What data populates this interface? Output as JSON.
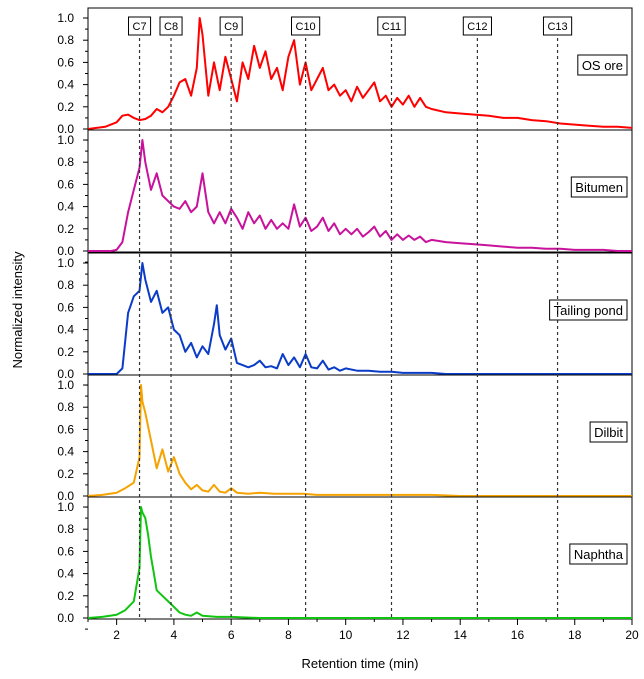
{
  "chart_data": {
    "type": "line",
    "xlabel": "Retention time (min)",
    "ylabel": "Normalized intensity",
    "xlim": [
      1,
      20
    ],
    "ylim": [
      0,
      1.0
    ],
    "x_ticks": [
      2,
      4,
      6,
      8,
      10,
      12,
      14,
      16,
      18,
      20
    ],
    "y_ticks": [
      "0.0",
      "0.2",
      "0.4",
      "0.6",
      "0.8",
      "1.0"
    ],
    "markers": [
      {
        "label": "C7",
        "x": 2.8
      },
      {
        "label": "C8",
        "x": 3.9
      },
      {
        "label": "C9",
        "x": 6.0
      },
      {
        "label": "C10",
        "x": 8.6
      },
      {
        "label": "C11",
        "x": 11.6
      },
      {
        "label": "C12",
        "x": 14.6
      },
      {
        "label": "C13",
        "x": 17.4
      }
    ],
    "series": [
      {
        "name": "OS ore",
        "color": "#ff0000",
        "x": [
          1,
          1.6,
          2.0,
          2.2,
          2.4,
          2.6,
          2.8,
          3.0,
          3.2,
          3.4,
          3.6,
          3.8,
          4.0,
          4.2,
          4.4,
          4.6,
          4.8,
          4.9,
          5.0,
          5.2,
          5.4,
          5.6,
          5.8,
          6.0,
          6.2,
          6.4,
          6.6,
          6.8,
          7.0,
          7.2,
          7.4,
          7.6,
          7.8,
          8.0,
          8.2,
          8.4,
          8.6,
          8.8,
          9.0,
          9.2,
          9.4,
          9.6,
          9.8,
          10.0,
          10.2,
          10.4,
          10.6,
          10.8,
          11.0,
          11.2,
          11.4,
          11.6,
          11.8,
          12.0,
          12.2,
          12.4,
          12.6,
          12.8,
          13.0,
          13.5,
          14.0,
          14.5,
          15.0,
          15.5,
          16.0,
          16.5,
          17.0,
          17.5,
          18.0,
          18.5,
          19.0,
          19.5,
          20.0
        ],
        "y": [
          0.0,
          0.02,
          0.06,
          0.12,
          0.13,
          0.1,
          0.08,
          0.09,
          0.12,
          0.18,
          0.15,
          0.2,
          0.3,
          0.42,
          0.45,
          0.3,
          0.55,
          1.0,
          0.85,
          0.3,
          0.6,
          0.35,
          0.65,
          0.45,
          0.25,
          0.6,
          0.45,
          0.75,
          0.55,
          0.7,
          0.45,
          0.55,
          0.35,
          0.65,
          0.8,
          0.4,
          0.6,
          0.35,
          0.45,
          0.55,
          0.35,
          0.4,
          0.3,
          0.35,
          0.25,
          0.38,
          0.28,
          0.35,
          0.42,
          0.25,
          0.3,
          0.2,
          0.28,
          0.22,
          0.3,
          0.2,
          0.28,
          0.2,
          0.18,
          0.15,
          0.14,
          0.13,
          0.12,
          0.1,
          0.1,
          0.08,
          0.07,
          0.05,
          0.04,
          0.03,
          0.02,
          0.02,
          0.01
        ]
      },
      {
        "name": "Bitumen",
        "color": "#c8129c",
        "x": [
          1,
          1.8,
          2.0,
          2.2,
          2.4,
          2.6,
          2.8,
          2.9,
          3.0,
          3.2,
          3.4,
          3.6,
          3.8,
          4.0,
          4.2,
          4.4,
          4.6,
          4.8,
          5.0,
          5.2,
          5.4,
          5.6,
          5.8,
          6.0,
          6.2,
          6.4,
          6.6,
          6.8,
          7.0,
          7.2,
          7.4,
          7.6,
          7.8,
          8.0,
          8.2,
          8.4,
          8.6,
          8.8,
          9.0,
          9.2,
          9.4,
          9.6,
          9.8,
          10.0,
          10.2,
          10.4,
          10.6,
          10.8,
          11.0,
          11.2,
          11.4,
          11.6,
          11.8,
          12.0,
          12.2,
          12.4,
          12.6,
          12.8,
          13.0,
          13.5,
          14.0,
          14.5,
          15.0,
          15.5,
          16.0,
          16.5,
          17.0,
          17.5,
          18.0,
          18.5,
          19.0,
          19.5,
          20.0
        ],
        "y": [
          0.0,
          0.0,
          0.01,
          0.08,
          0.35,
          0.55,
          0.75,
          1.0,
          0.8,
          0.55,
          0.7,
          0.5,
          0.45,
          0.4,
          0.38,
          0.45,
          0.35,
          0.4,
          0.7,
          0.35,
          0.25,
          0.35,
          0.25,
          0.38,
          0.3,
          0.2,
          0.35,
          0.25,
          0.32,
          0.2,
          0.28,
          0.2,
          0.25,
          0.2,
          0.42,
          0.22,
          0.3,
          0.18,
          0.22,
          0.3,
          0.18,
          0.25,
          0.15,
          0.2,
          0.15,
          0.2,
          0.13,
          0.17,
          0.22,
          0.13,
          0.18,
          0.1,
          0.15,
          0.1,
          0.14,
          0.1,
          0.13,
          0.08,
          0.1,
          0.08,
          0.07,
          0.06,
          0.05,
          0.04,
          0.03,
          0.03,
          0.02,
          0.02,
          0.01,
          0.01,
          0.01,
          0.0,
          0.0
        ]
      },
      {
        "name": "Tailing pond",
        "color": "#0a3cc8",
        "x": [
          1,
          2.0,
          2.2,
          2.4,
          2.6,
          2.8,
          2.9,
          3.0,
          3.2,
          3.4,
          3.6,
          3.8,
          4.0,
          4.2,
          4.4,
          4.6,
          4.8,
          5.0,
          5.2,
          5.4,
          5.5,
          5.6,
          5.8,
          6.0,
          6.2,
          6.4,
          6.6,
          6.8,
          7.0,
          7.2,
          7.4,
          7.6,
          7.8,
          8.0,
          8.2,
          8.4,
          8.6,
          8.8,
          9.0,
          9.2,
          9.4,
          9.6,
          9.8,
          10.0,
          10.4,
          10.8,
          11.2,
          11.6,
          12.0,
          12.5,
          13.0,
          13.5,
          14.0,
          15.0,
          16.0,
          17.0,
          18.0,
          19.0,
          20.0
        ],
        "y": [
          0.0,
          0.0,
          0.05,
          0.55,
          0.7,
          0.75,
          1.0,
          0.85,
          0.65,
          0.75,
          0.55,
          0.6,
          0.4,
          0.35,
          0.2,
          0.28,
          0.15,
          0.25,
          0.18,
          0.45,
          0.62,
          0.35,
          0.22,
          0.32,
          0.1,
          0.08,
          0.06,
          0.08,
          0.12,
          0.06,
          0.07,
          0.05,
          0.18,
          0.08,
          0.15,
          0.06,
          0.18,
          0.06,
          0.05,
          0.12,
          0.04,
          0.06,
          0.03,
          0.05,
          0.03,
          0.03,
          0.02,
          0.02,
          0.01,
          0.01,
          0.01,
          0.0,
          0.0,
          0.0,
          0.0,
          0.0,
          0.0,
          0.0,
          0.0
        ]
      },
      {
        "name": "Dilbit",
        "color": "#f5a300",
        "x": [
          1,
          1.5,
          2.0,
          2.3,
          2.6,
          2.8,
          2.85,
          2.9,
          3.0,
          3.2,
          3.4,
          3.6,
          3.8,
          4.0,
          4.2,
          4.4,
          4.6,
          4.8,
          5.0,
          5.2,
          5.4,
          5.6,
          5.8,
          6.0,
          6.2,
          6.6,
          7.0,
          7.5,
          8.0,
          8.5,
          9.0,
          10.0,
          11.0,
          12.0,
          13.0,
          14.0,
          15.0,
          16.0,
          17.0,
          18.0,
          19.0,
          20.0
        ],
        "y": [
          0.0,
          0.01,
          0.03,
          0.07,
          0.12,
          0.35,
          1.0,
          0.85,
          0.75,
          0.5,
          0.25,
          0.42,
          0.22,
          0.35,
          0.2,
          0.12,
          0.06,
          0.1,
          0.05,
          0.04,
          0.1,
          0.04,
          0.03,
          0.07,
          0.03,
          0.02,
          0.03,
          0.02,
          0.02,
          0.02,
          0.01,
          0.01,
          0.01,
          0.01,
          0.01,
          0.0,
          0.0,
          0.0,
          0.0,
          0.0,
          0.0,
          0.0
        ]
      },
      {
        "name": "Naphtha",
        "color": "#11c411",
        "x": [
          1,
          1.5,
          2.0,
          2.3,
          2.6,
          2.8,
          2.85,
          2.9,
          3.0,
          3.1,
          3.2,
          3.3,
          3.4,
          3.6,
          3.8,
          4.0,
          4.2,
          4.4,
          4.6,
          4.8,
          5.0,
          5.5,
          6.0,
          7.0,
          8.0,
          9.0,
          10.0,
          12.0,
          14.0,
          16.0,
          18.0,
          20.0
        ],
        "y": [
          0.0,
          0.01,
          0.03,
          0.07,
          0.15,
          0.45,
          1.0,
          0.95,
          0.9,
          0.75,
          0.55,
          0.4,
          0.25,
          0.2,
          0.15,
          0.1,
          0.05,
          0.03,
          0.02,
          0.05,
          0.02,
          0.01,
          0.01,
          0.0,
          0.0,
          0.0,
          0.0,
          0.0,
          0.0,
          0.0,
          0.0,
          0.0
        ]
      }
    ]
  }
}
